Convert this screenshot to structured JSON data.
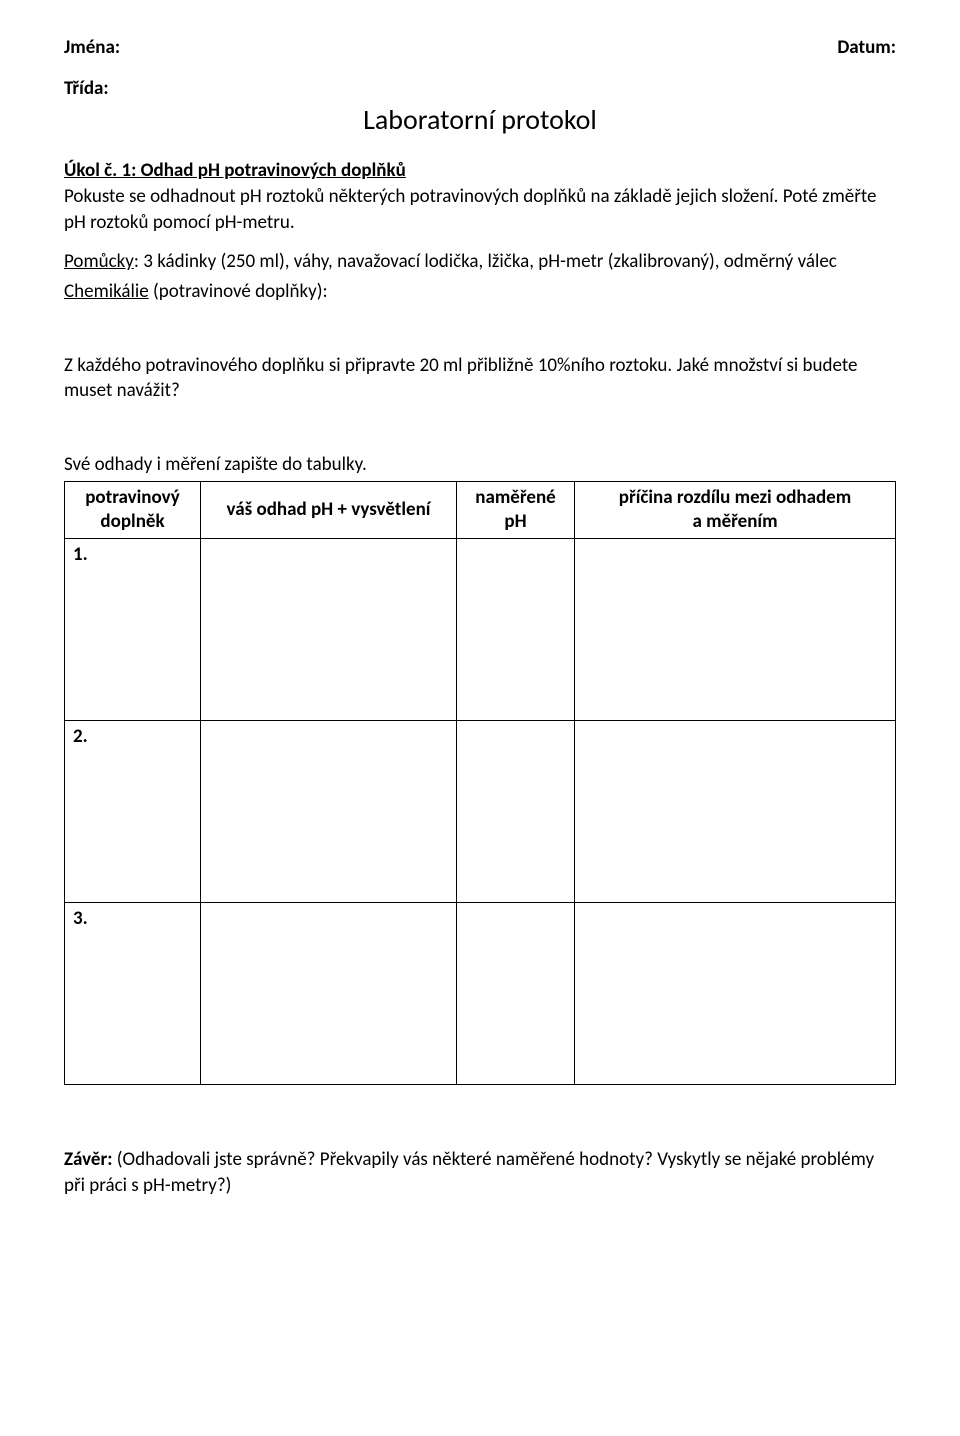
{
  "header": {
    "names_label": "Jména:",
    "date_label": "Datum:",
    "class_label": "Třída:"
  },
  "title": "Laboratorní protokol",
  "task": {
    "heading": "Úkol č. 1: Odhad pH potravinových doplňků",
    "intro1": "Pokuste se odhadnout pH roztoků některých potravinových doplňků na základě jejich složení. Poté změřte pH roztoků pomocí pH-metru.",
    "tools_label": "Pomůcky",
    "tools_text": ": 3 kádinky (250 ml), váhy, navažovací lodička, lžička, pH-metr (zkalibrovaný), odměrný válec",
    "chemicals_label": "Chemikálie",
    "chemicals_text": " (potravinové doplňky):",
    "prep_text": "Z každého potravinového doplňku si připravte 20 ml přibližně 10%ního roztoku. Jaké množství si budete muset navážit?",
    "table_intro": "Své odhady i měření zapište do tabulky."
  },
  "table": {
    "columns": {
      "c1a": "potravinový",
      "c1b": "doplněk",
      "c2": "váš odhad pH + vysvětlení",
      "c3a": "naměřené",
      "c3b": "pH",
      "c4a": "příčina rozdílu mezi odhadem",
      "c4b": "a měřením"
    },
    "rows": [
      "1.",
      "2.",
      "3."
    ]
  },
  "conclusion": {
    "label": "Závěr:",
    "text": " (Odhadovali jste správně? Překvapily vás některé naměřené hodnoty? Vyskytly se nějaké problémy při práci s pH-metry?)"
  }
}
